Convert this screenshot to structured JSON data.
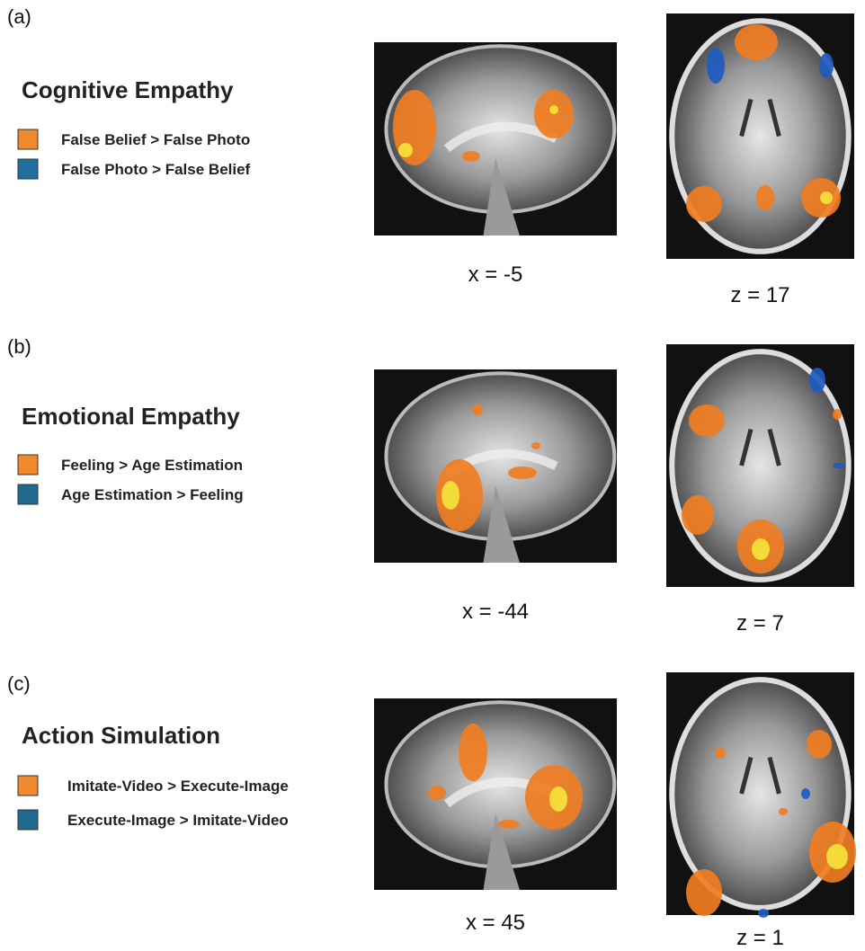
{
  "panels": [
    {
      "label": "(a)",
      "title": "Cognitive Empathy",
      "legend": [
        {
          "text": "False Belief > False Photo",
          "color": "#f08a2c"
        },
        {
          "text": "False Photo > False Belief",
          "color": "#1f6fa0"
        }
      ],
      "slices": [
        "x = -5",
        "z = 17"
      ]
    },
    {
      "label": "(b)",
      "title": "Emotional Empathy",
      "legend": [
        {
          "text": "Feeling > Age Estimation",
          "color": "#f08a2c"
        },
        {
          "text": "Age Estimation > Feeling",
          "color": "#1f6a8e"
        }
      ],
      "slices": [
        "x = -44",
        "z = 7"
      ]
    },
    {
      "label": "(c)",
      "title": "Action Simulation",
      "legend": [
        {
          "text": "Imitate-Video > Execute-Image",
          "color": "#f08a2c"
        },
        {
          "text": "Execute-Image > Imitate-Video",
          "color": "#1f6a8e"
        }
      ],
      "slices": [
        "x = 45",
        "z = 1"
      ]
    }
  ]
}
